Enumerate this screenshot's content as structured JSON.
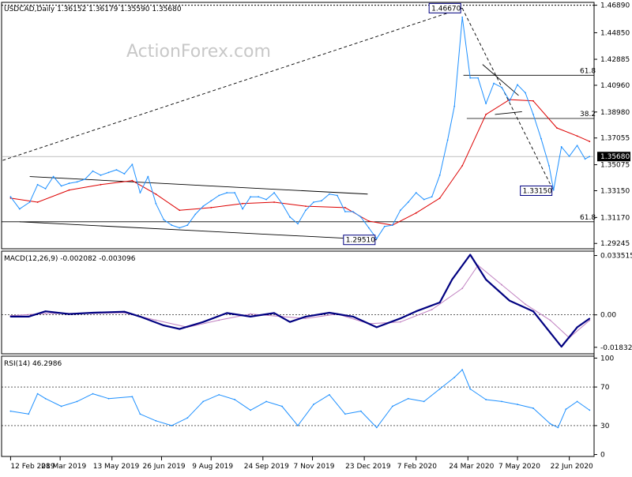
{
  "header": {
    "main_title": "USDCAD,Daily  1.36152 1.36179 1.35590 1.35680",
    "watermark": "ActionForex.com",
    "macd_title": "MACD(12,26,9) -0.002082 -0.003096",
    "rsi_title": "RSI(14) 46.2986"
  },
  "colors": {
    "price": "#1e90ff",
    "ma": "#dd0000",
    "macd": "#000080",
    "signal": "#c080c0",
    "rsi": "#1e90ff",
    "tag_border": "#000080"
  },
  "chart_data": [
    {
      "type": "line",
      "panel": "price",
      "x_tick_labels": [
        "12 Feb 2019",
        "28 Mar 2019",
        "13 May 2019",
        "26 Jun 2019",
        "9 Aug 2019",
        "24 Sep 2019",
        "7 Nov 2019",
        "23 Dec 2019",
        "7 Feb 2020",
        "24 Mar 2020",
        "7 May 2020",
        "22 Jun 2020"
      ],
      "y_tick_labels": [
        "1.46890",
        "1.44850",
        "1.42885",
        "1.40960",
        "1.38980",
        "1.37055",
        "1.35075",
        "1.33150",
        "1.31170",
        "1.29245"
      ],
      "ylim": [
        1.2885,
        1.471
      ],
      "current_price": "1.35680",
      "annotations": [
        {
          "label": "1.46670",
          "value": 1.4667,
          "date": "2020-03-19"
        },
        {
          "label": "1.33150",
          "value": 1.3315,
          "date": "2020-06-08"
        },
        {
          "label": "1.29510",
          "value": 1.2951,
          "date": "2020-01-03"
        }
      ],
      "fib_levels": [
        {
          "label": "61.8",
          "value": 1.417
        },
        {
          "label": "38.2",
          "value": 1.385
        },
        {
          "label": "61.8",
          "value": 1.3085
        }
      ],
      "series": [
        {
          "key": "price",
          "points": [
            [
              "2019-02-12",
              1.327
            ],
            [
              "2019-02-20",
              1.318
            ],
            [
              "2019-03-01",
              1.323
            ],
            [
              "2019-03-08",
              1.336
            ],
            [
              "2019-03-15",
              1.333
            ],
            [
              "2019-03-22",
              1.342
            ],
            [
              "2019-03-29",
              1.335
            ],
            [
              "2019-04-05",
              1.337
            ],
            [
              "2019-04-12",
              1.338
            ],
            [
              "2019-04-19",
              1.34
            ],
            [
              "2019-04-26",
              1.346
            ],
            [
              "2019-05-03",
              1.343
            ],
            [
              "2019-05-10",
              1.345
            ],
            [
              "2019-05-17",
              1.347
            ],
            [
              "2019-05-24",
              1.344
            ],
            [
              "2019-05-31",
              1.351
            ],
            [
              "2019-06-07",
              1.33
            ],
            [
              "2019-06-14",
              1.342
            ],
            [
              "2019-06-21",
              1.322
            ],
            [
              "2019-06-28",
              1.31
            ],
            [
              "2019-07-05",
              1.306
            ],
            [
              "2019-07-12",
              1.304
            ],
            [
              "2019-07-19",
              1.306
            ],
            [
              "2019-07-26",
              1.314
            ],
            [
              "2019-08-02",
              1.32
            ],
            [
              "2019-08-09",
              1.324
            ],
            [
              "2019-08-16",
              1.328
            ],
            [
              "2019-08-23",
              1.33
            ],
            [
              "2019-08-30",
              1.33
            ],
            [
              "2019-09-06",
              1.318
            ],
            [
              "2019-09-13",
              1.327
            ],
            [
              "2019-09-20",
              1.327
            ],
            [
              "2019-09-27",
              1.325
            ],
            [
              "2019-10-04",
              1.33
            ],
            [
              "2019-10-11",
              1.322
            ],
            [
              "2019-10-18",
              1.312
            ],
            [
              "2019-10-25",
              1.307
            ],
            [
              "2019-11-01",
              1.317
            ],
            [
              "2019-11-08",
              1.323
            ],
            [
              "2019-11-15",
              1.324
            ],
            [
              "2019-11-22",
              1.329
            ],
            [
              "2019-11-29",
              1.328
            ],
            [
              "2019-12-06",
              1.316
            ],
            [
              "2019-12-13",
              1.316
            ],
            [
              "2019-12-20",
              1.312
            ],
            [
              "2019-12-27",
              1.304
            ],
            [
              "2020-01-03",
              1.296
            ],
            [
              "2020-01-10",
              1.305
            ],
            [
              "2020-01-17",
              1.306
            ],
            [
              "2020-01-24",
              1.317
            ],
            [
              "2020-01-31",
              1.323
            ],
            [
              "2020-02-07",
              1.33
            ],
            [
              "2020-02-14",
              1.325
            ],
            [
              "2020-02-21",
              1.327
            ],
            [
              "2020-02-28",
              1.343
            ],
            [
              "2020-03-06",
              1.369
            ],
            [
              "2020-03-12",
              1.394
            ],
            [
              "2020-03-19",
              1.46
            ],
            [
              "2020-03-26",
              1.415
            ],
            [
              "2020-04-02",
              1.415
            ],
            [
              "2020-04-09",
              1.396
            ],
            [
              "2020-04-16",
              1.411
            ],
            [
              "2020-04-23",
              1.408
            ],
            [
              "2020-04-30",
              1.398
            ],
            [
              "2020-05-07",
              1.41
            ],
            [
              "2020-05-14",
              1.404
            ],
            [
              "2020-05-21",
              1.388
            ],
            [
              "2020-05-28",
              1.37
            ],
            [
              "2020-06-04",
              1.35
            ],
            [
              "2020-06-08",
              1.332
            ],
            [
              "2020-06-15",
              1.364
            ],
            [
              "2020-06-22",
              1.357
            ],
            [
              "2020-06-29",
              1.365
            ],
            [
              "2020-07-06",
              1.355
            ],
            [
              "2020-07-10",
              1.3568
            ]
          ]
        },
        {
          "key": "ma",
          "points": [
            [
              "2019-02-12",
              1.326
            ],
            [
              "2019-03-08",
              1.323
            ],
            [
              "2019-04-05",
              1.332
            ],
            [
              "2019-05-03",
              1.336
            ],
            [
              "2019-05-31",
              1.339
            ],
            [
              "2019-06-21",
              1.329
            ],
            [
              "2019-07-12",
              1.317
            ],
            [
              "2019-08-09",
              1.319
            ],
            [
              "2019-09-06",
              1.322
            ],
            [
              "2019-10-04",
              1.323
            ],
            [
              "2019-11-01",
              1.32
            ],
            [
              "2019-12-06",
              1.319
            ],
            [
              "2019-12-27",
              1.309
            ],
            [
              "2020-01-17",
              1.306
            ],
            [
              "2020-02-07",
              1.315
            ],
            [
              "2020-02-28",
              1.326
            ],
            [
              "2020-03-19",
              1.35
            ],
            [
              "2020-04-09",
              1.388
            ],
            [
              "2020-04-30",
              1.399
            ],
            [
              "2020-05-21",
              1.398
            ],
            [
              "2020-06-11",
              1.378
            ],
            [
              "2020-06-29",
              1.372
            ],
            [
              "2020-07-10",
              1.368
            ]
          ]
        }
      ]
    },
    {
      "type": "line",
      "panel": "macd",
      "y_tick_labels": [
        "0.033515",
        "0.00",
        "-0.018324"
      ],
      "ylim": [
        -0.022,
        0.036
      ],
      "series": [
        {
          "key": "macd",
          "points": [
            [
              "2019-02-12",
              -0.001
            ],
            [
              "2019-02-28",
              -0.001
            ],
            [
              "2019-03-15",
              0.002
            ],
            [
              "2019-04-05",
              0.0005
            ],
            [
              "2019-04-26",
              0.0012
            ],
            [
              "2019-05-24",
              0.0018
            ],
            [
              "2019-06-07",
              -0.001
            ],
            [
              "2019-06-28",
              -0.006
            ],
            [
              "2019-07-12",
              -0.008
            ],
            [
              "2019-08-02",
              -0.004
            ],
            [
              "2019-08-23",
              0.001
            ],
            [
              "2019-09-13",
              -0.001
            ],
            [
              "2019-10-04",
              0.001
            ],
            [
              "2019-10-18",
              -0.004
            ],
            [
              "2019-11-01",
              -0.001
            ],
            [
              "2019-11-22",
              0.0012
            ],
            [
              "2019-12-13",
              -0.001
            ],
            [
              "2020-01-03",
              -0.007
            ],
            [
              "2020-01-24",
              -0.002
            ],
            [
              "2020-02-07",
              0.002
            ],
            [
              "2020-02-28",
              0.007
            ],
            [
              "2020-03-10",
              0.02
            ],
            [
              "2020-03-26",
              0.034
            ],
            [
              "2020-04-09",
              0.02
            ],
            [
              "2020-04-30",
              0.008
            ],
            [
              "2020-05-21",
              0.002
            ],
            [
              "2020-06-05",
              -0.01
            ],
            [
              "2020-06-15",
              -0.018
            ],
            [
              "2020-06-29",
              -0.007
            ],
            [
              "2020-07-10",
              -0.0021
            ]
          ]
        },
        {
          "key": "signal",
          "points": [
            [
              "2019-02-12",
              -0.0005
            ],
            [
              "2019-03-15",
              0.0008
            ],
            [
              "2019-04-26",
              0.0008
            ],
            [
              "2019-05-24",
              0.0012
            ],
            [
              "2019-06-21",
              -0.003
            ],
            [
              "2019-07-19",
              -0.007
            ],
            [
              "2019-08-16",
              -0.003
            ],
            [
              "2019-09-13",
              0.0005
            ],
            [
              "2019-10-11",
              -0.001
            ],
            [
              "2019-11-01",
              -0.002
            ],
            [
              "2019-11-29",
              0.0005
            ],
            [
              "2019-12-27",
              -0.005
            ],
            [
              "2020-01-24",
              -0.004
            ],
            [
              "2020-02-21",
              0.003
            ],
            [
              "2020-03-19",
              0.015
            ],
            [
              "2020-04-02",
              0.028
            ],
            [
              "2020-04-23",
              0.017
            ],
            [
              "2020-05-14",
              0.006
            ],
            [
              "2020-06-05",
              -0.003
            ],
            [
              "2020-06-22",
              -0.013
            ],
            [
              "2020-07-10",
              -0.0031
            ]
          ]
        }
      ]
    },
    {
      "type": "line",
      "panel": "rsi",
      "y_tick_labels": [
        "100",
        "70",
        "30",
        "0"
      ],
      "ylim": [
        -2,
        102
      ],
      "series": [
        {
          "key": "rsi",
          "points": [
            [
              "2019-02-12",
              45
            ],
            [
              "2019-02-28",
              42
            ],
            [
              "2019-03-08",
              63
            ],
            [
              "2019-03-15",
              58
            ],
            [
              "2019-03-29",
              50
            ],
            [
              "2019-04-12",
              55
            ],
            [
              "2019-04-26",
              63
            ],
            [
              "2019-05-10",
              58
            ],
            [
              "2019-05-31",
              60
            ],
            [
              "2019-06-07",
              42
            ],
            [
              "2019-06-21",
              35
            ],
            [
              "2019-07-05",
              30
            ],
            [
              "2019-07-19",
              38
            ],
            [
              "2019-08-02",
              55
            ],
            [
              "2019-08-16",
              62
            ],
            [
              "2019-08-30",
              57
            ],
            [
              "2019-09-13",
              46
            ],
            [
              "2019-09-27",
              55
            ],
            [
              "2019-10-11",
              50
            ],
            [
              "2019-10-25",
              30
            ],
            [
              "2019-11-08",
              52
            ],
            [
              "2019-11-22",
              62
            ],
            [
              "2019-12-06",
              42
            ],
            [
              "2019-12-20",
              45
            ],
            [
              "2020-01-03",
              28
            ],
            [
              "2020-01-17",
              50
            ],
            [
              "2020-01-31",
              58
            ],
            [
              "2020-02-14",
              55
            ],
            [
              "2020-02-28",
              68
            ],
            [
              "2020-03-12",
              80
            ],
            [
              "2020-03-19",
              88
            ],
            [
              "2020-03-26",
              68
            ],
            [
              "2020-04-09",
              57
            ],
            [
              "2020-04-23",
              55
            ],
            [
              "2020-05-07",
              52
            ],
            [
              "2020-05-21",
              48
            ],
            [
              "2020-06-05",
              32
            ],
            [
              "2020-06-12",
              28
            ],
            [
              "2020-06-19",
              47
            ],
            [
              "2020-06-29",
              55
            ],
            [
              "2020-07-10",
              46
            ]
          ]
        }
      ]
    }
  ]
}
